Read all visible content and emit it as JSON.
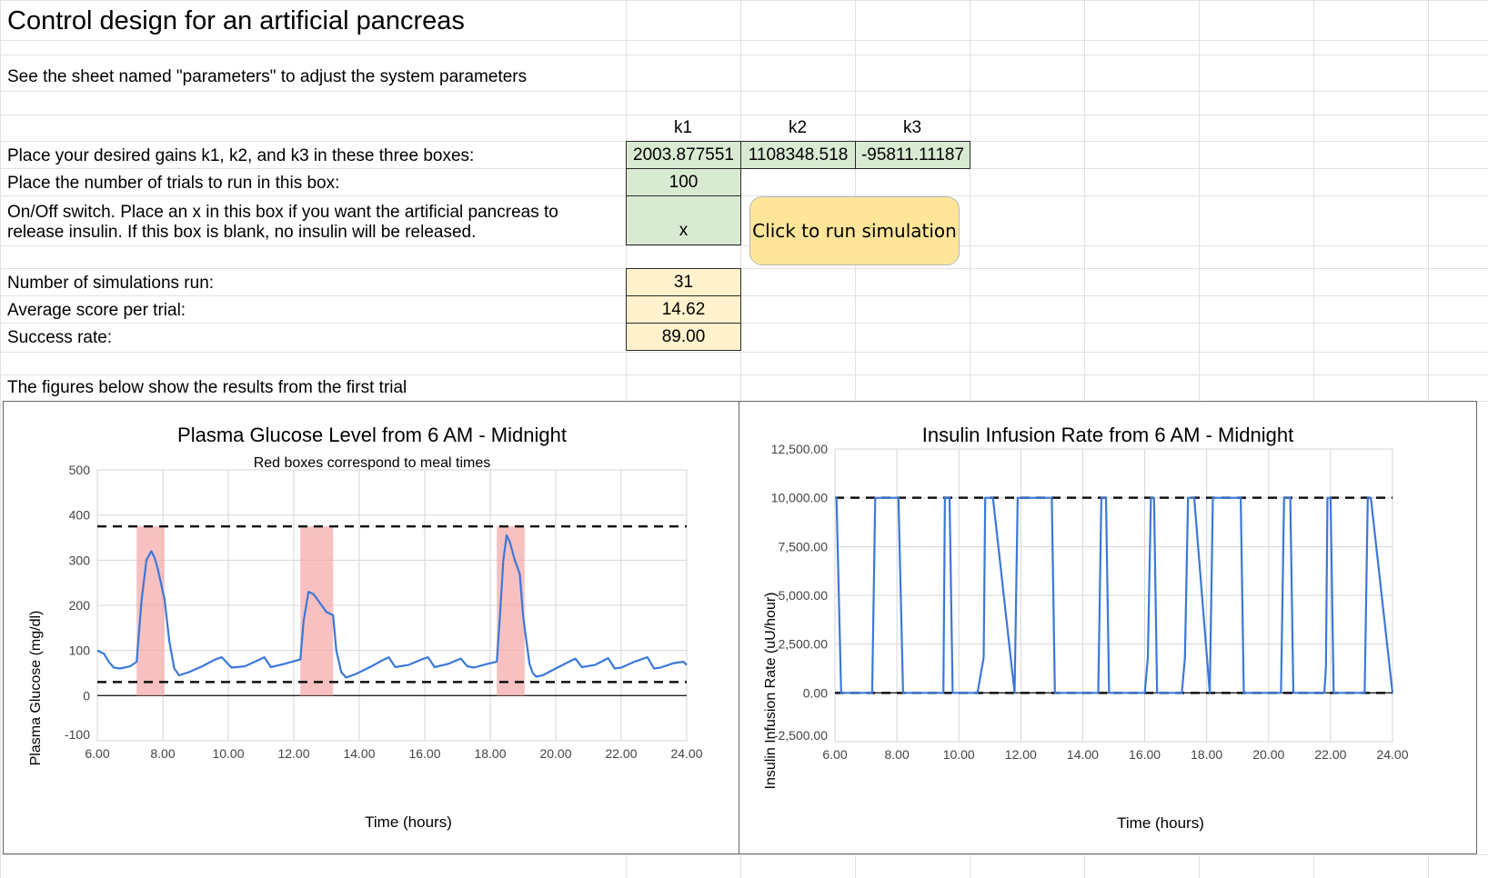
{
  "sheet": {
    "title": "Control design for an artificial pancreas",
    "note": "See the sheet named \"parameters\" to adjust the system parameters",
    "gains_label": "Place your desired gains k1, k2, and k3 in these three boxes:",
    "trials_label": "Place the number of trials to run in this box:",
    "switch_label_line1": "On/Off switch.  Place an x in this box if you want the artificial pancreas to",
    "switch_label_line2": "release insulin.  If this box is blank, no insulin will be released.",
    "sims_label": "Number of simulations run:",
    "avg_label": "Average score per trial:",
    "success_label": "Success rate:",
    "figures_label": "The figures below show the results from the first trial"
  },
  "gains": {
    "headers": [
      "k1",
      "k2",
      "k3"
    ],
    "values": [
      "2003.877551",
      "1108348.518",
      "-95811.11187"
    ]
  },
  "inputs": {
    "trials": "100",
    "switch": "x"
  },
  "results": {
    "sims_run": "31",
    "avg_score": "14.62",
    "success_rate": "89.00"
  },
  "run_button": {
    "label": "Click to run simulation"
  },
  "colors": {
    "input_green": "#d9ead3",
    "output_yellow": "#fff2cc",
    "button_yellow": "#ffe599",
    "series_blue": "#3c78d8",
    "meal_red": "#f4a7a7"
  },
  "chart_data": [
    {
      "type": "line",
      "title": "Plasma Glucose Level from 6 AM - Midnight",
      "subtitle": "Red boxes correspond to meal times",
      "xlabel": "Time (hours)",
      "ylabel": "Plasma Glucose (mg/dl)",
      "xlim": [
        6,
        24
      ],
      "ylim": [
        -100,
        500
      ],
      "xticks": [
        "6.00",
        "8.00",
        "10.00",
        "12.00",
        "14.00",
        "16.00",
        "18.00",
        "20.00",
        "22.00",
        "24.00"
      ],
      "yticks": [
        "-100",
        "0",
        "100",
        "200",
        "300",
        "400",
        "500"
      ],
      "grid": true,
      "meal_boxes": [
        [
          7.2,
          8.05
        ],
        [
          12.2,
          13.2
        ],
        [
          18.2,
          19.05
        ]
      ],
      "meal_box_top": 375,
      "threshold_lines": [
        375,
        30
      ],
      "series": [
        {
          "x": [
            6.0,
            6.2,
            6.35,
            6.5,
            6.7,
            7.0,
            7.2,
            7.35,
            7.5,
            7.65,
            7.75,
            7.85,
            8.0,
            8.05,
            8.2,
            8.35,
            8.5,
            8.8,
            9.2,
            9.6,
            9.8,
            10.1,
            10.5,
            10.9,
            11.1,
            11.3,
            11.7,
            12.1,
            12.2,
            12.3,
            12.45,
            12.6,
            12.8,
            13.0,
            13.2,
            13.3,
            13.45,
            13.6,
            13.9,
            14.3,
            14.7,
            14.9,
            15.1,
            15.5,
            15.9,
            16.1,
            16.3,
            16.7,
            17.1,
            17.3,
            17.5,
            17.9,
            18.2,
            18.3,
            18.4,
            18.5,
            18.6,
            18.75,
            18.9,
            19.0,
            19.05,
            19.2,
            19.3,
            19.4,
            19.6,
            20.0,
            20.4,
            20.6,
            20.8,
            21.2,
            21.6,
            21.8,
            22.0,
            22.4,
            22.8,
            23.0,
            23.2,
            23.6,
            23.9,
            24.0
          ],
          "y": [
            100,
            93,
            75,
            62,
            60,
            65,
            75,
            210,
            300,
            320,
            305,
            280,
            230,
            215,
            120,
            60,
            45,
            52,
            65,
            80,
            85,
            62,
            65,
            78,
            85,
            63,
            70,
            78,
            80,
            165,
            230,
            225,
            205,
            185,
            178,
            100,
            52,
            40,
            48,
            62,
            78,
            85,
            63,
            68,
            80,
            85,
            63,
            70,
            82,
            65,
            62,
            70,
            75,
            180,
            300,
            355,
            340,
            300,
            270,
            180,
            150,
            70,
            50,
            42,
            45,
            60,
            75,
            82,
            63,
            68,
            83,
            60,
            62,
            75,
            85,
            60,
            62,
            72,
            75,
            68
          ]
        }
      ]
    },
    {
      "type": "line",
      "title": "Insulin Infusion Rate from 6 AM - Midnight",
      "xlabel": "Time (hours)",
      "ylabel": "Insulin Infusion Rate (uU/hour)",
      "xlim": [
        6,
        24
      ],
      "ylim": [
        -2500,
        12500
      ],
      "xticks": [
        "6.00",
        "8.00",
        "10.00",
        "12.00",
        "14.00",
        "16.00",
        "18.00",
        "20.00",
        "22.00",
        "24.00"
      ],
      "yticks": [
        "-2,500.00",
        "0.00",
        "2,500.00",
        "5,000.00",
        "7,500.00",
        "10,000.00",
        "12,500.00"
      ],
      "grid": true,
      "threshold_lines": [
        10000,
        0
      ],
      "series": [
        {
          "x": [
            6.0,
            6.05,
            6.2,
            7.2,
            7.3,
            8.0,
            8.05,
            8.2,
            9.5,
            9.55,
            9.65,
            9.7,
            9.8,
            10.6,
            10.8,
            10.85,
            11.0,
            11.1,
            11.8,
            11.9,
            12.9,
            13.0,
            13.1,
            14.5,
            14.6,
            14.65,
            14.75,
            14.85,
            16.0,
            16.1,
            16.2,
            16.3,
            16.4,
            17.1,
            17.2,
            17.3,
            17.4,
            17.6,
            18.1,
            18.2,
            18.3,
            19.1,
            19.2,
            19.3,
            20.4,
            20.5,
            20.55,
            20.7,
            20.8,
            21.8,
            21.85,
            21.9,
            22.0,
            22.1,
            23.1,
            23.2,
            23.3,
            24.0
          ],
          "y": [
            10000,
            10000,
            0,
            0,
            10000,
            10000,
            10000,
            0,
            0,
            10000,
            10000,
            10000,
            0,
            0,
            1800,
            10000,
            10000,
            10000,
            0,
            10000,
            10000,
            10000,
            0,
            0,
            10000,
            10000,
            10000,
            0,
            0,
            1800,
            10000,
            10000,
            0,
            0,
            0,
            1800,
            10000,
            10000,
            0,
            10000,
            10000,
            10000,
            0,
            0,
            0,
            10000,
            10000,
            10000,
            0,
            0,
            1300,
            10000,
            10000,
            0,
            0,
            10000,
            10000,
            0
          ]
        }
      ]
    }
  ]
}
